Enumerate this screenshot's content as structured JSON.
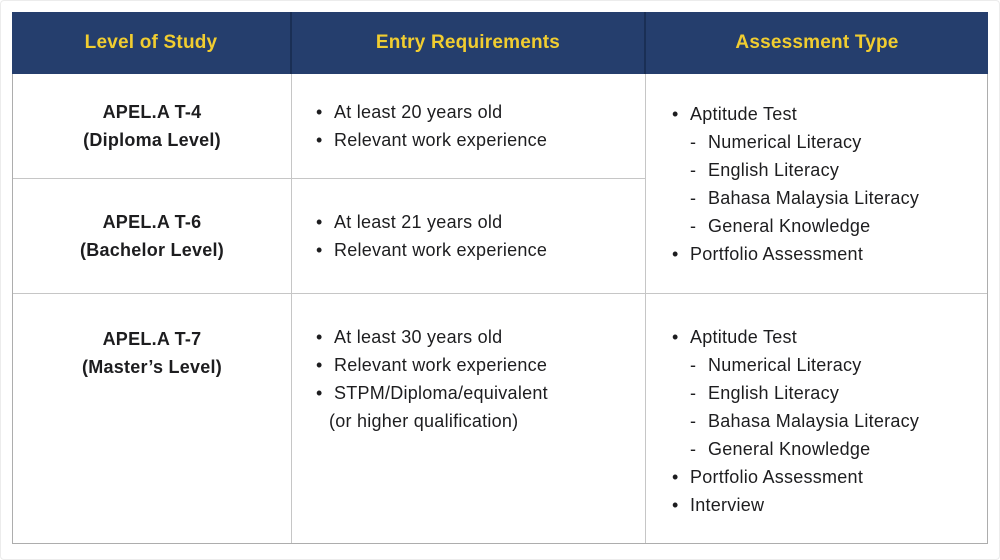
{
  "colors": {
    "header_bg": "#253E6D",
    "header_text": "#F1CD30",
    "header_divider": "#1A2F55",
    "body_text": "#1D1D1F",
    "grid_border": "#C6C6C6",
    "outer_border": "#ADADAD"
  },
  "table": {
    "columns": [
      {
        "label": "Level of Study"
      },
      {
        "label": "Entry Requirements"
      },
      {
        "label": "Assessment Type"
      }
    ],
    "levels": {
      "t4": {
        "title": "APEL.A T-4",
        "subtitle": "(Diploma Level)"
      },
      "t6": {
        "title": "APEL.A T-6",
        "subtitle": "(Bachelor Level)"
      },
      "t7": {
        "title": "APEL.A T-7",
        "subtitle": "(Master’s Level)"
      }
    },
    "entry_requirements": {
      "t4": [
        {
          "marker": "•",
          "text": "At least 20 years old"
        },
        {
          "marker": "•",
          "text": "Relevant work experience"
        }
      ],
      "t6": [
        {
          "marker": "•",
          "text": "At least 21 years old"
        },
        {
          "marker": "•",
          "text": "Relevant work experience"
        }
      ],
      "t7": [
        {
          "marker": "•",
          "text": "At least 30 years old"
        },
        {
          "marker": "•",
          "text": "Relevant work experience"
        },
        {
          "marker": "•",
          "text": "STPM/Diploma/equivalent"
        },
        {
          "marker": "",
          "text": "(or higher qualification)"
        }
      ]
    },
    "assessment_types": {
      "t4_t6": [
        {
          "marker": "•",
          "text": "Aptitude Test"
        },
        {
          "marker": "-",
          "text": "Numerical Literacy",
          "indent": 1
        },
        {
          "marker": "-",
          "text": "English Literacy",
          "indent": 1
        },
        {
          "marker": "-",
          "text": "Bahasa Malaysia Literacy",
          "indent": 1
        },
        {
          "marker": "-",
          "text": "General Knowledge",
          "indent": 1
        },
        {
          "marker": "•",
          "text": "Portfolio Assessment"
        }
      ],
      "t7": [
        {
          "marker": "•",
          "text": "Aptitude Test"
        },
        {
          "marker": "-",
          "text": "Numerical Literacy",
          "indent": 1
        },
        {
          "marker": "-",
          "text": "English Literacy",
          "indent": 1
        },
        {
          "marker": "-",
          "text": "Bahasa Malaysia Literacy",
          "indent": 1
        },
        {
          "marker": "-",
          "text": "General Knowledge",
          "indent": 1
        },
        {
          "marker": "•",
          "text": "Portfolio Assessment"
        },
        {
          "marker": "•",
          "text": "Interview"
        }
      ]
    }
  }
}
